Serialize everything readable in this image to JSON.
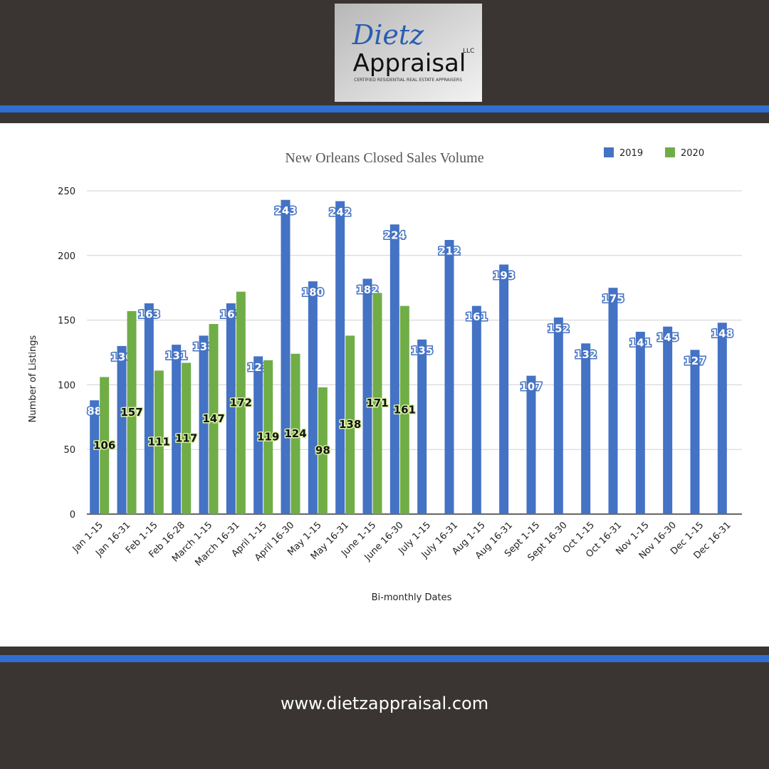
{
  "logo": {
    "script": "Dietz",
    "suffix": "LLC",
    "name": "Appraisal",
    "tagline": "CERTIFIED RESIDENTIAL REAL ESTATE APPRAISERS"
  },
  "chart_data": {
    "type": "bar",
    "title": "New Orleans Closed Sales Volume",
    "x_label": "Bi-monthly Dates",
    "y_label": "Number of Listings",
    "categories": [
      "Jan 1-15",
      "Jan 16-31",
      "Feb 1-15",
      "Feb 16-28",
      "March 1-15",
      "March 16-31",
      "April 1-15",
      "April 16-30",
      "May 1-15",
      "May 16-31",
      "June 1-15",
      "June 16-30",
      "July 1-15",
      "July 16-31",
      "Aug 1-15",
      "Aug 16-31",
      "Sept 1-15",
      "Sept 16-30",
      "Oct 1-15",
      "Oct 16-31",
      "Nov 1-15",
      "Nov 16-30",
      "Dec 1-15",
      "Dec 16-31"
    ],
    "series": [
      {
        "name": "2019",
        "color": "#4472c4",
        "values": [
          88,
          130,
          163,
          131,
          138,
          163,
          122,
          243,
          180,
          242,
          182,
          224,
          135,
          212,
          161,
          193,
          107,
          152,
          132,
          175,
          141,
          145,
          127,
          148
        ]
      },
      {
        "name": "2020",
        "color": "#70ad47",
        "values": [
          106,
          157,
          111,
          117,
          147,
          172,
          119,
          124,
          98,
          138,
          171,
          161,
          null,
          null,
          null,
          null,
          null,
          null,
          null,
          null,
          null,
          null,
          null,
          null
        ]
      }
    ],
    "ylim": [
      0,
      250
    ],
    "yticks": [
      0,
      50,
      100,
      150,
      200,
      250
    ],
    "grid": true,
    "legend": "top-right"
  },
  "footer": {
    "url": "www.dietzappraisal.com"
  }
}
